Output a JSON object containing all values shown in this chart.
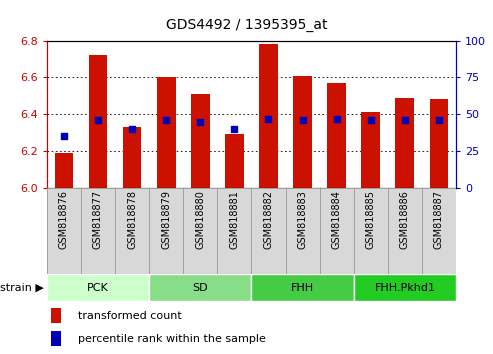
{
  "title": "GDS4492 / 1395395_at",
  "samples": [
    "GSM818876",
    "GSM818877",
    "GSM818878",
    "GSM818879",
    "GSM818880",
    "GSM818881",
    "GSM818882",
    "GSM818883",
    "GSM818884",
    "GSM818885",
    "GSM818886",
    "GSM818887"
  ],
  "transformed_counts": [
    6.19,
    6.72,
    6.33,
    6.6,
    6.51,
    6.29,
    6.78,
    6.61,
    6.57,
    6.41,
    6.49,
    6.48
  ],
  "percentile_ranks": [
    35,
    46,
    40,
    46,
    45,
    40,
    47,
    46,
    47,
    46,
    46,
    46
  ],
  "ylim": [
    6.0,
    6.8
  ],
  "yticks_left": [
    6.0,
    6.2,
    6.4,
    6.6,
    6.8
  ],
  "yticks_right": [
    0,
    25,
    50,
    75,
    100
  ],
  "bar_color": "#cc1100",
  "dot_color": "#0000bb",
  "groups": [
    {
      "label": "PCK",
      "start": 0,
      "end": 3,
      "color": "#ccffcc"
    },
    {
      "label": "SD",
      "start": 3,
      "end": 6,
      "color": "#88dd88"
    },
    {
      "label": "FHH",
      "start": 6,
      "end": 9,
      "color": "#44cc44"
    },
    {
      "label": "FHH.Pkhd1",
      "start": 9,
      "end": 12,
      "color": "#22cc22"
    }
  ],
  "bar_width": 0.55,
  "legend_bar_label": "transformed count",
  "legend_dot_label": "percentile rank within the sample",
  "ylabel_left_color": "#cc0000",
  "ylabel_right_color": "#0000bb",
  "strain_label": "strain",
  "grid_color": "#000000",
  "grid_ticks": [
    6.2,
    6.4,
    6.6
  ],
  "xtick_bg_color": "#d8d8d8",
  "xtick_border_color": "#888888"
}
